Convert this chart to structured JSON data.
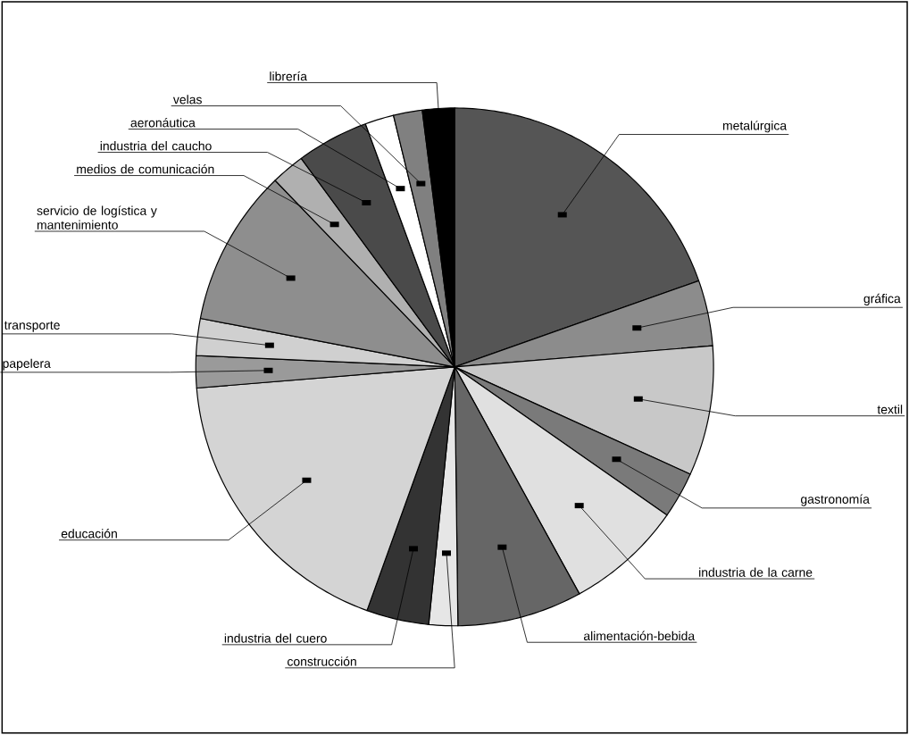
{
  "chart_data": {
    "type": "pie",
    "categories": [
      "metalúrgica",
      "gráfica",
      "textil",
      "gastronomía",
      "industria de la carne",
      "alimentación-bebida",
      "construcción",
      "industria del cuero",
      "educación",
      "papelera",
      "transporte",
      "servicio de logística y mantenimiento",
      "medios de comunicación",
      "industria del caucho",
      "aeronáutica",
      "velas",
      "librería"
    ],
    "values": [
      19.6,
      4.1,
      8.1,
      2.9,
      7.3,
      7.8,
      1.8,
      3.9,
      18.2,
      2.0,
      2.3,
      9.8,
      2.1,
      4.5,
      1.8,
      1.8,
      2.0
    ],
    "colors": [
      "#555555",
      "#8c8c8c",
      "#c8c8c8",
      "#7a7a7a",
      "#e0e0e0",
      "#666666",
      "#e6e6e6",
      "#333333",
      "#d4d4d4",
      "#9a9a9a",
      "#d0d0d0",
      "#8e8e8e",
      "#b0b0b0",
      "#4a4a4a",
      "#ffffff",
      "#808080",
      "#000000"
    ]
  }
}
